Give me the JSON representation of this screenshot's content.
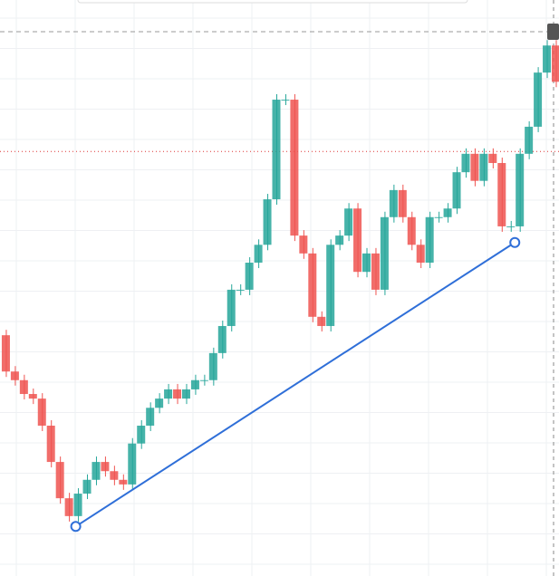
{
  "chart_data": {
    "type": "candlestick",
    "values": [
      41.8,
      35.5,
      34.0,
      31.6,
      30.8,
      26.1,
      19.8,
      13.5,
      10.4,
      14.3,
      16.7,
      19.8,
      18.2,
      16.7,
      15.9,
      23.0,
      26.1,
      29.2,
      30.8,
      32.4,
      30.8,
      32.4,
      34.0,
      34.0,
      38.7,
      43.4,
      49.7,
      49.7,
      54.4,
      57.5,
      65.4,
      82.7,
      82.7,
      59.1,
      56.0,
      45.0,
      43.4,
      57.5,
      59.1,
      63.8,
      52.8,
      56.0,
      49.7,
      62.3,
      67.0,
      62.3,
      57.5,
      54.4,
      62.3,
      62.3,
      63.8,
      70.1,
      73.3,
      68.6,
      73.3,
      71.7,
      60.7,
      60.7,
      73.3,
      78.0,
      87.4,
      92.1,
      85.8
    ],
    "up_color": "#26a69a",
    "down_color": "#ef5350",
    "ylim": [
      0,
      100
    ],
    "trendline": {
      "color": "#2f6fd8",
      "points": [
        {
          "x": 8.4,
          "y": 8.6
        },
        {
          "x": 57.1,
          "y": 57.9
        }
      ]
    },
    "last_price_line": 94.5,
    "marker_line": 73.7
  }
}
